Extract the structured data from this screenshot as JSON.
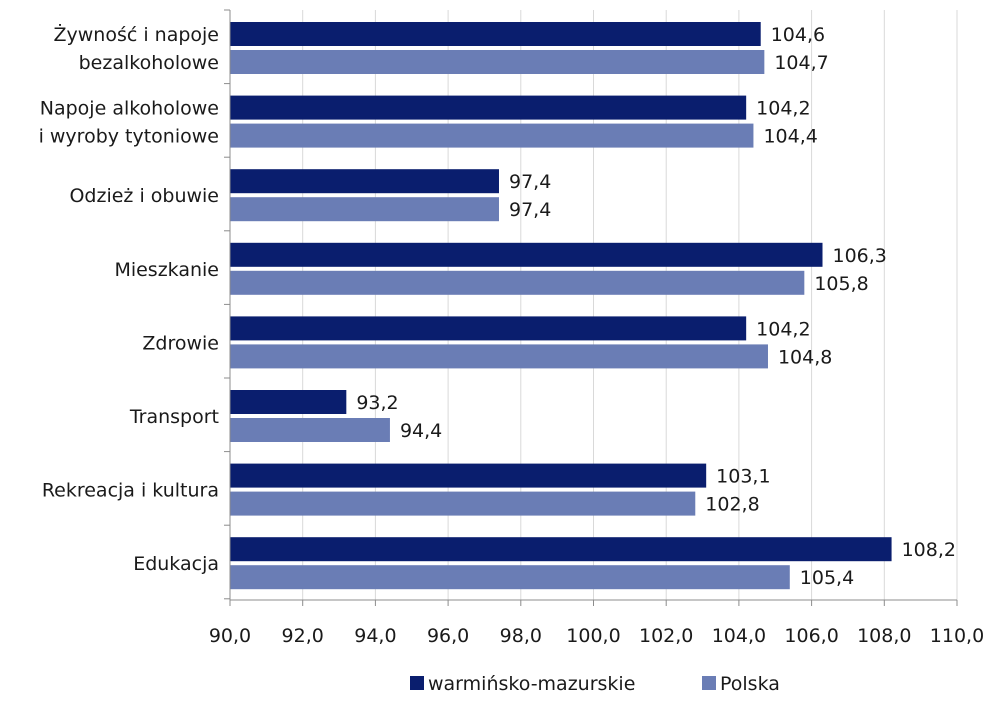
{
  "chart_data": {
    "type": "bar",
    "orientation": "horizontal",
    "categories": [
      [
        "Żywność i napoje",
        "bezalkoholowe"
      ],
      [
        "Napoje alkoholowe",
        "i wyroby tytoniowe"
      ],
      [
        "Odzież i obuwie"
      ],
      [
        "Mieszkanie"
      ],
      [
        "Zdrowie"
      ],
      [
        "Transport"
      ],
      [
        "Rekreacja i kultura"
      ],
      [
        "Edukacja"
      ]
    ],
    "series": [
      {
        "name": "warmińsko-mazurskie",
        "color": "#0a1e6e",
        "values": [
          104.6,
          104.2,
          97.4,
          106.3,
          104.2,
          93.2,
          103.1,
          108.2
        ],
        "labels": [
          "104,6",
          "104,2",
          "97,4",
          "106,3",
          "104,2",
          "93,2",
          "103,1",
          "108,2"
        ]
      },
      {
        "name": "Polska",
        "color": "#6a7db5",
        "values": [
          104.7,
          104.4,
          97.4,
          105.8,
          104.8,
          94.4,
          102.8,
          105.4
        ],
        "labels": [
          "104,7",
          "104,4",
          "97,4",
          "105,8",
          "104,8",
          "94,4",
          "102,8",
          "105,4"
        ]
      }
    ],
    "xlim": [
      90,
      110
    ],
    "xticks": [
      "90,0",
      "92,0",
      "94,0",
      "96,0",
      "98,0",
      "100,0",
      "102,0",
      "104,0",
      "106,0",
      "108,0",
      "110,0"
    ],
    "grid": true,
    "legend_position": "bottom"
  }
}
